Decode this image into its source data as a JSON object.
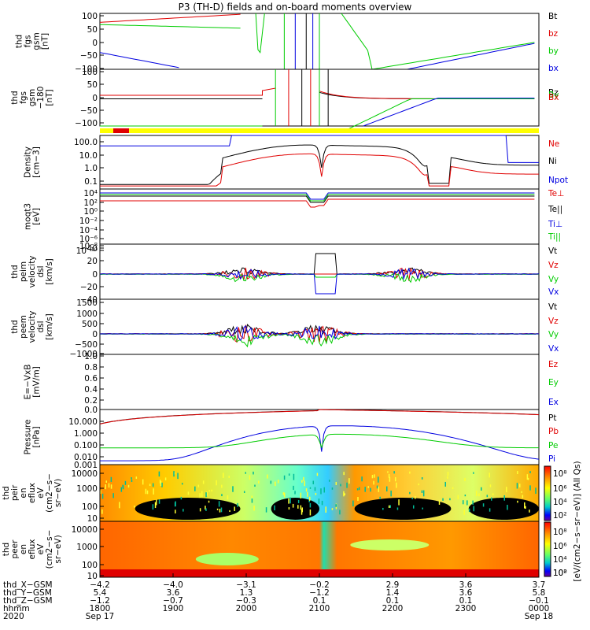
{
  "title": "P3 (TH-D) fields and on-board moments overview",
  "colors": {
    "black": "#000000",
    "red": "#e00000",
    "green": "#00cc00",
    "blue": "#0000e0",
    "yellow": "#ffff00"
  },
  "chart_data": [
    {
      "type": "line",
      "ylabel": [
        "thd",
        "fgs",
        "gsm",
        "[nT]"
      ],
      "yticks": [
        "100",
        "50",
        "0",
        "−50",
        "−100"
      ],
      "ylim": [
        -100,
        100
      ],
      "legend": [
        {
          "name": "Bt",
          "color": "#000000"
        },
        {
          "name": "bz",
          "color": "#e00000"
        },
        {
          "name": "by",
          "color": "#00cc00"
        },
        {
          "name": "bx",
          "color": "#0000e0"
        }
      ]
    },
    {
      "type": "line",
      "ylabel": [
        "thd",
        "fgs",
        "gsm",
        "−180",
        "[nT]"
      ],
      "yticks": [
        "100",
        "50",
        "0",
        "−50",
        "−100"
      ],
      "ylim": [
        -120,
        120
      ],
      "legend": [
        {
          "name": "Bz",
          "color": "#000000"
        },
        {
          "name": "By",
          "color": "#00cc00"
        },
        {
          "name": "Bx",
          "color": "#e00000"
        }
      ]
    },
    {
      "type": "line",
      "ylabel": [
        "Density",
        "[cm−3]"
      ],
      "yticks": [
        "100.0",
        "10.0",
        "1.0",
        "0.1"
      ],
      "ylim": [
        0.05,
        200
      ],
      "log": true,
      "legend": [
        {
          "name": "Ne",
          "color": "#e00000"
        },
        {
          "name": "Ni",
          "color": "#000000"
        },
        {
          "name": "Npot",
          "color": "#0000e0"
        }
      ]
    },
    {
      "type": "line",
      "ylabel": [
        "moqt3",
        "[eV]"
      ],
      "yticks": [
        "10⁴",
        "10²",
        "10⁰",
        "10⁻²",
        "10⁻⁴",
        "10⁻⁶",
        "10⁻⁸",
        "10⁻¹⁰"
      ],
      "log": true,
      "legend": [
        {
          "name": "Te⊥",
          "color": "#e00000"
        },
        {
          "name": "Te||",
          "color": "#000000"
        },
        {
          "name": "Ti⊥",
          "color": "#0000e0"
        },
        {
          "name": "Ti||",
          "color": "#00cc00"
        }
      ]
    },
    {
      "type": "line",
      "ylabel": [
        "thd",
        "peim",
        "velocity",
        "dsl",
        "[km/s]"
      ],
      "yticks": [
        "40",
        "20",
        "0",
        "−20",
        "−40"
      ],
      "ylim": [
        -40,
        40
      ],
      "legend": [
        {
          "name": "Vt",
          "color": "#000000"
        },
        {
          "name": "Vz",
          "color": "#e00000"
        },
        {
          "name": "Vy",
          "color": "#00cc00"
        },
        {
          "name": "Vx",
          "color": "#0000e0"
        }
      ]
    },
    {
      "type": "line",
      "ylabel": [
        "thd",
        "peem",
        "velocity",
        "dsl",
        "[km/s]"
      ],
      "yticks": [
        "1500",
        "1000",
        "500",
        "0",
        "−500",
        "−1000"
      ],
      "ylim": [
        -1000,
        1500
      ],
      "legend": [
        {
          "name": "Vt",
          "color": "#000000"
        },
        {
          "name": "Vz",
          "color": "#e00000"
        },
        {
          "name": "Vy",
          "color": "#00cc00"
        },
        {
          "name": "Vx",
          "color": "#0000e0"
        }
      ]
    },
    {
      "type": "line",
      "ylabel": [
        "E=−VxB",
        "[mV/m]"
      ],
      "yticks": [
        "1.0",
        "0.8",
        "0.6",
        "0.4",
        "0.2",
        "0.0"
      ],
      "ylim": [
        0,
        1
      ],
      "legend": [
        {
          "name": "Ez",
          "color": "#e00000"
        },
        {
          "name": "Ey",
          "color": "#00cc00"
        },
        {
          "name": "Ex",
          "color": "#0000e0"
        }
      ]
    },
    {
      "type": "line",
      "ylabel": [
        "Pressure",
        "[nPa]"
      ],
      "yticks": [
        "10.000",
        "1.000",
        "0.100",
        "0.010",
        "0.001"
      ],
      "ylim": [
        0.001,
        10
      ],
      "log": true,
      "legend": [
        {
          "name": "Pt",
          "color": "#000000"
        },
        {
          "name": "Pb",
          "color": "#e00000"
        },
        {
          "name": "Pe",
          "color": "#00cc00"
        },
        {
          "name": "Pi",
          "color": "#0000e0"
        }
      ]
    },
    {
      "type": "heatmap",
      "ylabel": [
        "thd",
        "peir",
        "en",
        "eflux",
        "eV",
        "(cm2−s−",
        "sr−eV)"
      ],
      "yticks": [
        "10000",
        "1000",
        "100",
        "10"
      ],
      "log": true
    },
    {
      "type": "heatmap",
      "ylabel": [
        "thd",
        "peer",
        "en",
        "eflux",
        "eV",
        "(cm2−s−",
        "sr−eV)"
      ],
      "yticks": [
        "10000",
        "1000",
        "100",
        "10"
      ],
      "log": true
    }
  ],
  "colorbar": {
    "label": "[eV/(cm2−s−sr−eV)] (All Qs)",
    "ticks1": [
      "10⁸",
      "10⁶",
      "10⁴",
      "10²",
      "10⁰"
    ],
    "ticks2": [
      "10⁸",
      "10⁶",
      "10⁴",
      "10²",
      "10⁰"
    ]
  },
  "xaxis": {
    "row_labels": [
      "thd_X−GSM",
      "thd_Y−GSM",
      "thd_Z−GSM",
      "hhmm",
      "2020"
    ],
    "columns": [
      {
        "x": "−4.2",
        "y": "5.4",
        "z": "−1.2",
        "hhmm": "1800",
        "date": "Sep 17"
      },
      {
        "x": "−4.0",
        "y": "3.6",
        "z": "−0.7",
        "hhmm": "1900",
        "date": ""
      },
      {
        "x": "−3.1",
        "y": "1.3",
        "z": "−0.3",
        "hhmm": "2000",
        "date": ""
      },
      {
        "x": "−0.2",
        "y": "−1.2",
        "z": "0.1",
        "hhmm": "2100",
        "date": ""
      },
      {
        "x": "2.9",
        "y": "1.4",
        "z": "0.1",
        "hhmm": "2200",
        "date": ""
      },
      {
        "x": "3.6",
        "y": "3.6",
        "z": "0.1",
        "hhmm": "2300",
        "date": ""
      },
      {
        "x": "3.7",
        "y": "5.8",
        "z": "−0.1",
        "hhmm": "0000",
        "date": "Sep 18"
      }
    ]
  }
}
